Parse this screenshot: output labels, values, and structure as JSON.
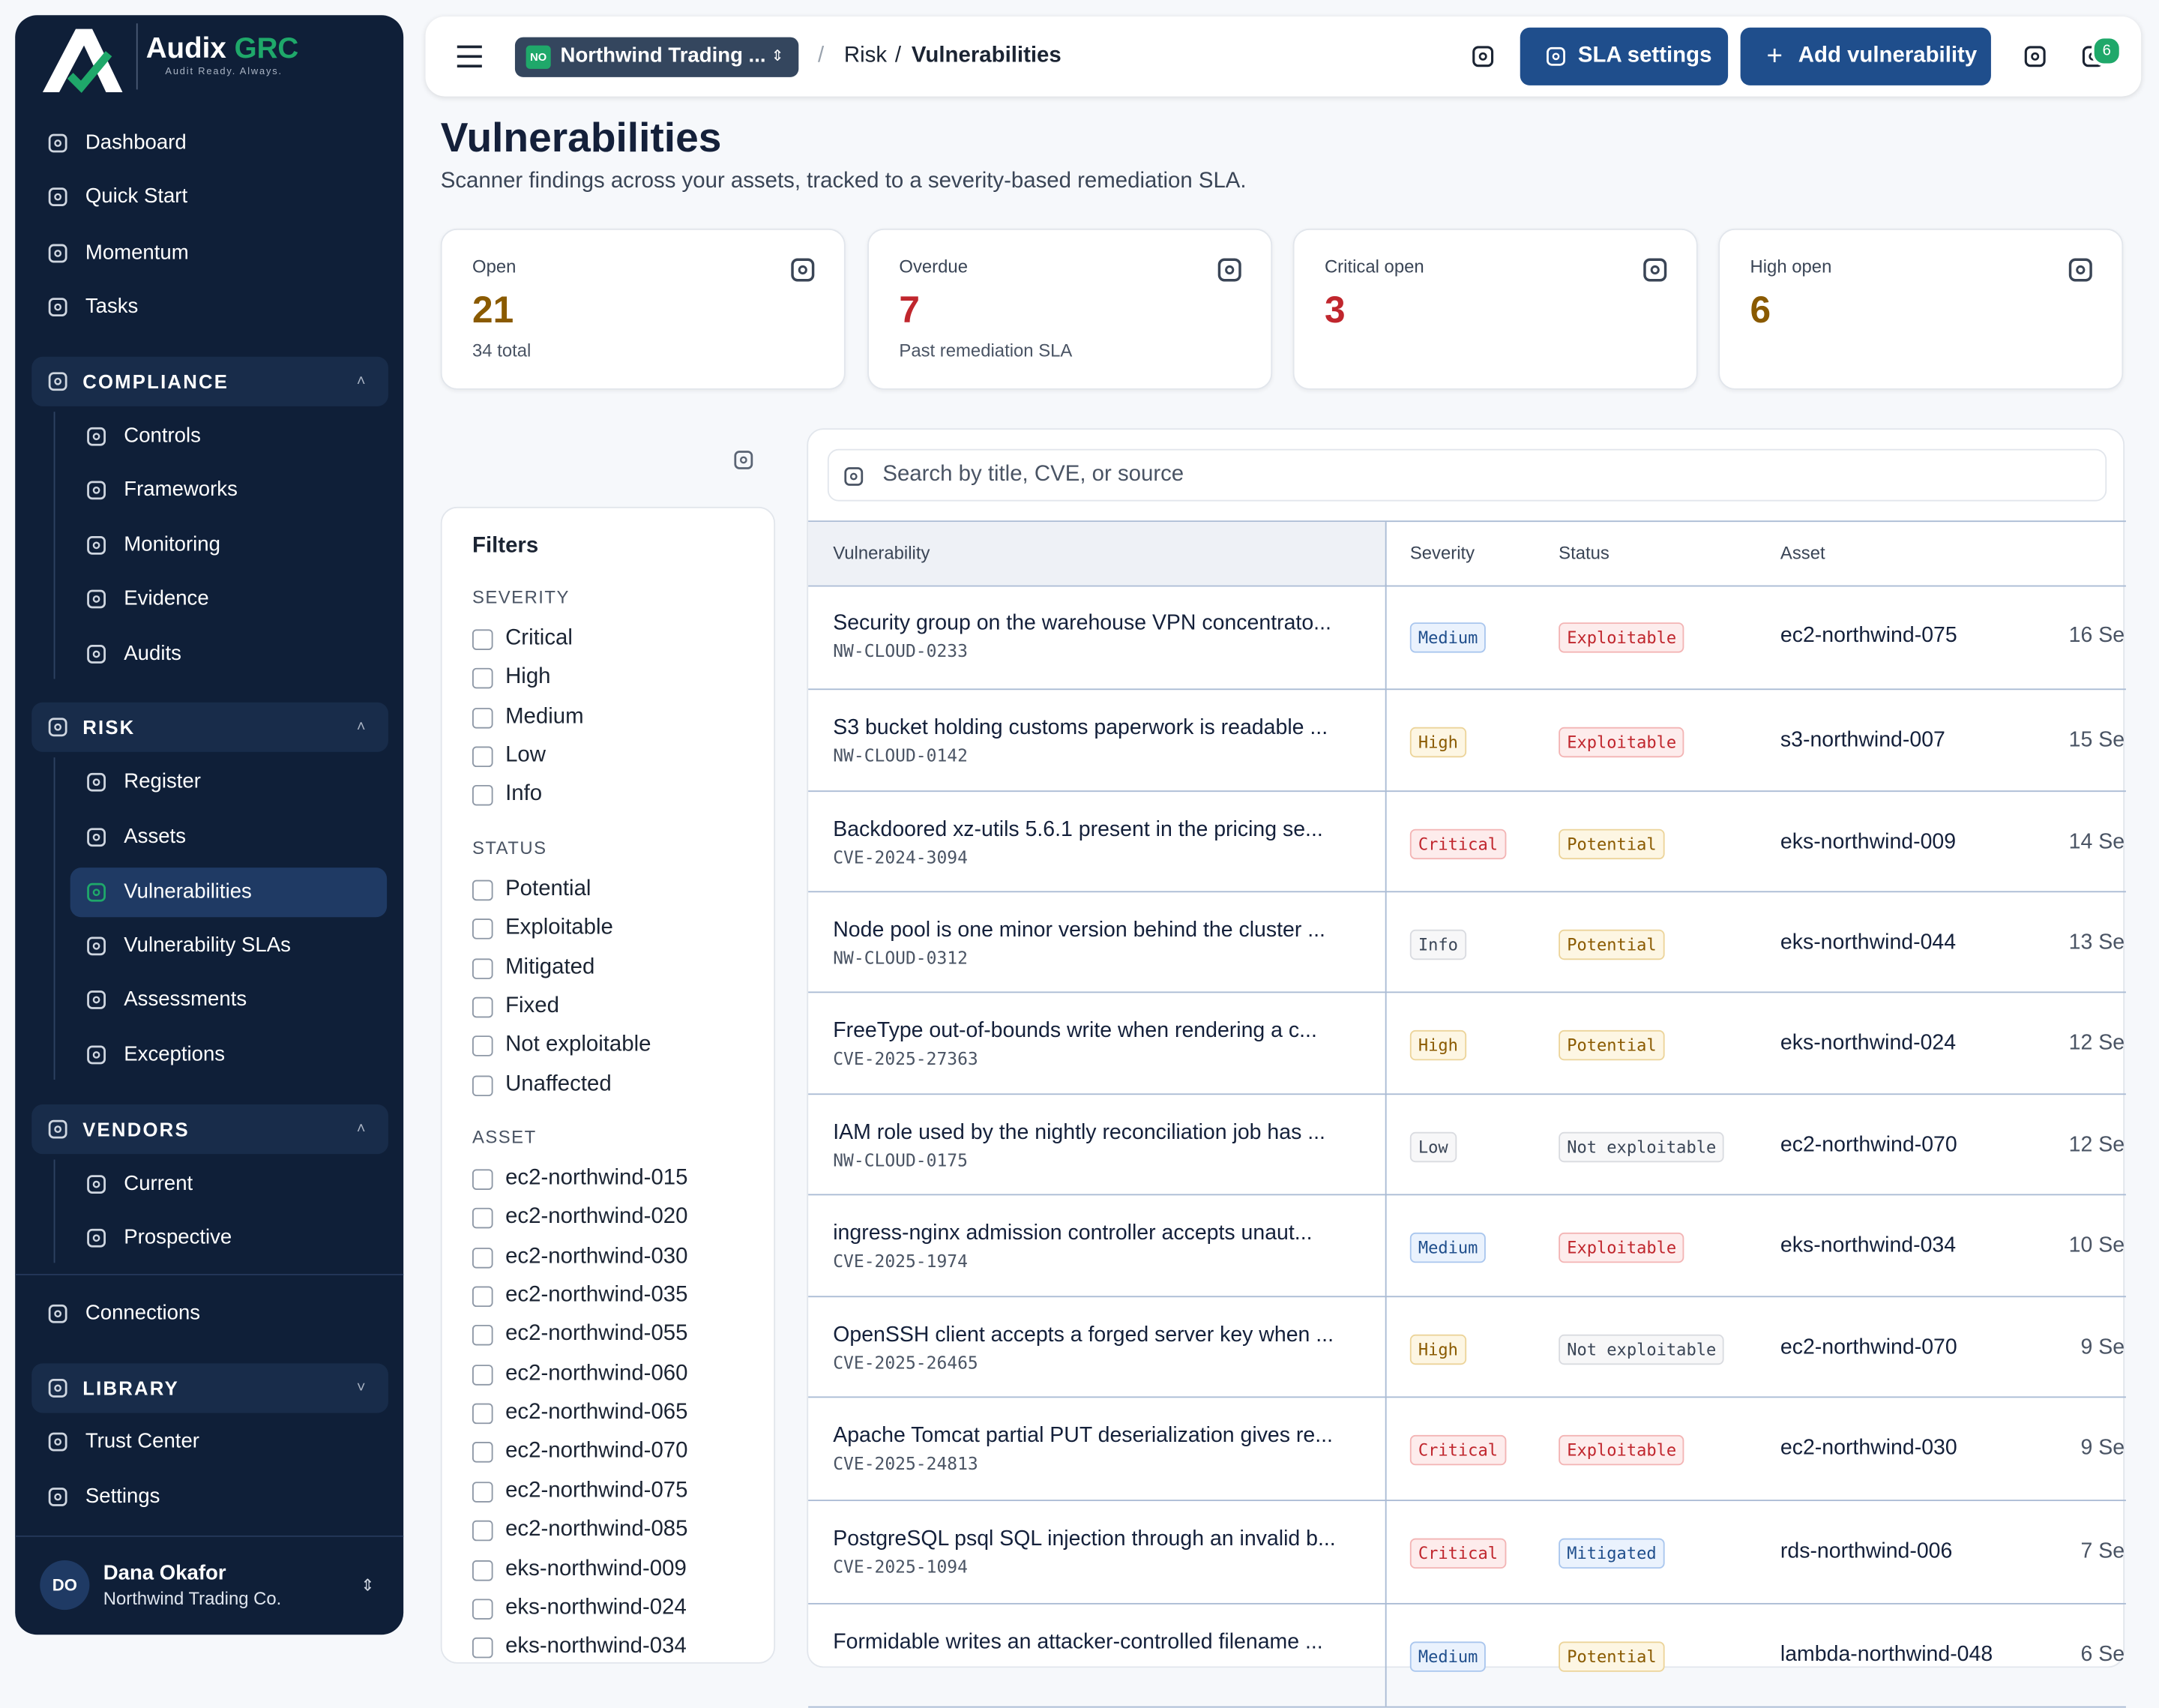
{
  "brand": {
    "name": "Audix",
    "accent": "GRC",
    "tagline": "Audit Ready. Always."
  },
  "nav": {
    "top": [
      "Dashboard",
      "Quick Start",
      "Momentum",
      "Tasks"
    ],
    "sections": [
      {
        "title": "COMPLIANCE",
        "items": [
          {
            "label": "Controls"
          },
          {
            "label": "Frameworks"
          },
          {
            "label": "Monitoring"
          },
          {
            "label": "Evidence"
          },
          {
            "label": "Audits"
          }
        ]
      },
      {
        "title": "RISK",
        "items": [
          {
            "label": "Register"
          },
          {
            "label": "Assets"
          },
          {
            "label": "Vulnerabilities",
            "active": true
          },
          {
            "label": "Vulnerability SLAs"
          },
          {
            "label": "Assessments"
          },
          {
            "label": "Exceptions"
          }
        ]
      },
      {
        "title": "VENDORS",
        "items": [
          {
            "label": "Current"
          },
          {
            "label": "Prospective"
          }
        ]
      }
    ],
    "connections": "Connections",
    "library": "LIBRARY",
    "bottom": [
      "Trust Center",
      "Settings"
    ]
  },
  "user": {
    "initials": "DO",
    "name": "Dana Okafor",
    "org": "Northwind Trading Co."
  },
  "topbar": {
    "org_badge": "NO",
    "org": "Northwind Trading ...",
    "breadcrumb": [
      "Risk",
      "Vulnerabilities"
    ],
    "sla_button": "SLA settings",
    "add_button": "Add vulnerability",
    "notifications": 6
  },
  "page": {
    "title": "Vulnerabilities",
    "subtitle": "Scanner findings across your assets, tracked to a severity-based remediation SLA."
  },
  "stats": [
    {
      "label": "Open",
      "value": 21,
      "note": "34 total",
      "color": "#8a5a00"
    },
    {
      "label": "Overdue",
      "value": 7,
      "note": "Past remediation SLA",
      "color": "#c0262d"
    },
    {
      "label": "Critical open",
      "value": 3,
      "color": "#c0262d"
    },
    {
      "label": "High open",
      "value": 6,
      "color": "#8a5a00"
    }
  ],
  "filters": {
    "title": "Filters",
    "groups": [
      {
        "title": "SEVERITY",
        "options": [
          "Critical",
          "High",
          "Medium",
          "Low",
          "Info"
        ]
      },
      {
        "title": "STATUS",
        "options": [
          "Potential",
          "Exploitable",
          "Mitigated",
          "Fixed",
          "Not exploitable",
          "Unaffected"
        ]
      },
      {
        "title": "ASSET",
        "options": [
          "ec2-northwind-015",
          "ec2-northwind-020",
          "ec2-northwind-030",
          "ec2-northwind-035",
          "ec2-northwind-055",
          "ec2-northwind-060",
          "ec2-northwind-065",
          "ec2-northwind-070",
          "ec2-northwind-075",
          "ec2-northwind-085",
          "eks-northwind-009",
          "eks-northwind-024",
          "eks-northwind-034"
        ]
      }
    ]
  },
  "search_placeholder": "Search by title, CVE, or source",
  "badge_tones": {
    "Critical": "red",
    "High": "amber",
    "Medium": "blue",
    "Low": "gray",
    "Info": "gray",
    "Exploitable": "red",
    "Potential": "amber",
    "Not exploitable": "gray",
    "Mitigated": "blue"
  },
  "table": {
    "columns": [
      "Vulnerability",
      "Severity",
      "Status",
      "Asset"
    ],
    "rows": [
      {
        "title": "Security group on the warehouse VPN concentrato...",
        "id": "NW-CLOUD-0233",
        "severity": "Medium",
        "status": "Exploitable",
        "asset": "ec2-northwind-075",
        "age": "16 Se"
      },
      {
        "title": "S3 bucket holding customs paperwork is readable ...",
        "id": "NW-CLOUD-0142",
        "severity": "High",
        "status": "Exploitable",
        "asset": "s3-northwind-007",
        "age": "15 Se"
      },
      {
        "title": "Backdoored xz-utils 5.6.1 present in the pricing se...",
        "id": "CVE-2024-3094",
        "severity": "Critical",
        "status": "Potential",
        "asset": "eks-northwind-009",
        "age": "14 Se"
      },
      {
        "title": "Node pool is one minor version behind the cluster ...",
        "id": "NW-CLOUD-0312",
        "severity": "Info",
        "status": "Potential",
        "asset": "eks-northwind-044",
        "age": "13 Se"
      },
      {
        "title": "FreeType out-of-bounds write when rendering a c...",
        "id": "CVE-2025-27363",
        "severity": "High",
        "status": "Potential",
        "asset": "eks-northwind-024",
        "age": "12 Se"
      },
      {
        "title": "IAM role used by the nightly reconciliation job has ...",
        "id": "NW-CLOUD-0175",
        "severity": "Low",
        "status": "Not exploitable",
        "asset": "ec2-northwind-070",
        "age": "12 Se"
      },
      {
        "title": "ingress-nginx admission controller accepts unaut...",
        "id": "CVE-2025-1974",
        "severity": "Medium",
        "status": "Exploitable",
        "asset": "eks-northwind-034",
        "age": "10 Se"
      },
      {
        "title": "OpenSSH client accepts a forged server key when ...",
        "id": "CVE-2025-26465",
        "severity": "High",
        "status": "Not exploitable",
        "asset": "ec2-northwind-070",
        "age": "9 Se"
      },
      {
        "title": "Apache Tomcat partial PUT deserialization gives re...",
        "id": "CVE-2025-24813",
        "severity": "Critical",
        "status": "Exploitable",
        "asset": "ec2-northwind-030",
        "age": "9 Se"
      },
      {
        "title": "PostgreSQL psql SQL injection through an invalid b...",
        "id": "CVE-2025-1094",
        "severity": "Critical",
        "status": "Mitigated",
        "asset": "rds-northwind-006",
        "age": "7 Se"
      },
      {
        "title": "Formidable writes an attacker-controlled filename ...",
        "severity": "Medium",
        "status": "Potential",
        "asset": "lambda-northwind-048",
        "age": "6 Se"
      }
    ]
  }
}
